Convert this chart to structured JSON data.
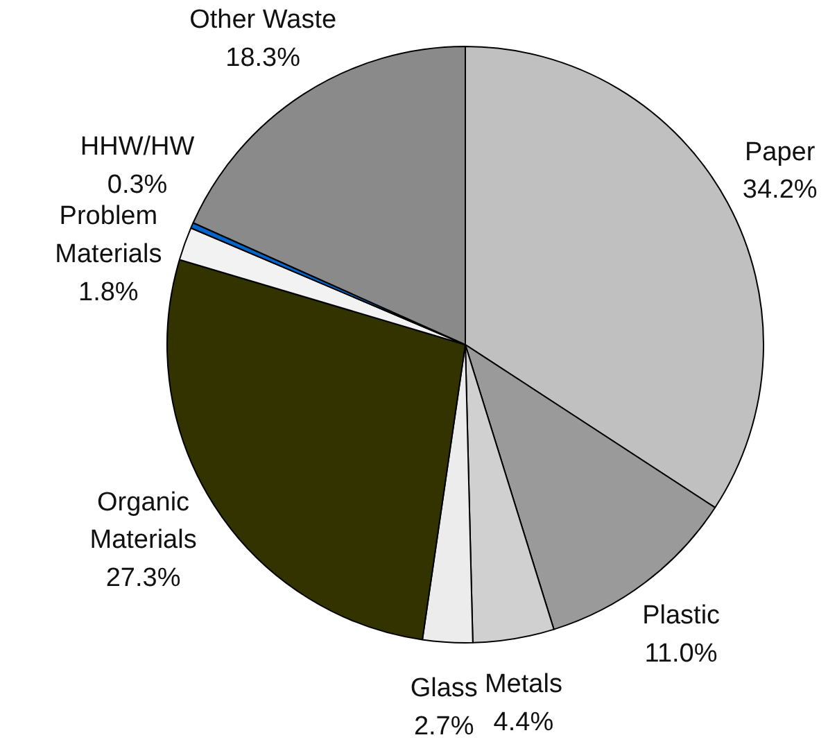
{
  "chart_data": {
    "type": "pie",
    "categories": [
      "Paper",
      "Plastic",
      "Metals",
      "Glass",
      "Organic Materials",
      "Problem Materials",
      "HHW/HW",
      "Other Waste"
    ],
    "values": [
      34.2,
      11.0,
      4.4,
      2.7,
      27.3,
      1.8,
      0.3,
      18.3
    ],
    "colors": [
      "#c0c0c0",
      "#9a9a9a",
      "#d0d0d0",
      "#ececec",
      "#333300",
      "#f2f2f2",
      "#0066cc",
      "#8a8a8a"
    ],
    "value_labels": [
      "34.2%",
      "11.0%",
      "4.4%",
      "2.7%",
      "27.3%",
      "1.8%",
      "0.3%",
      "18.3%"
    ]
  }
}
